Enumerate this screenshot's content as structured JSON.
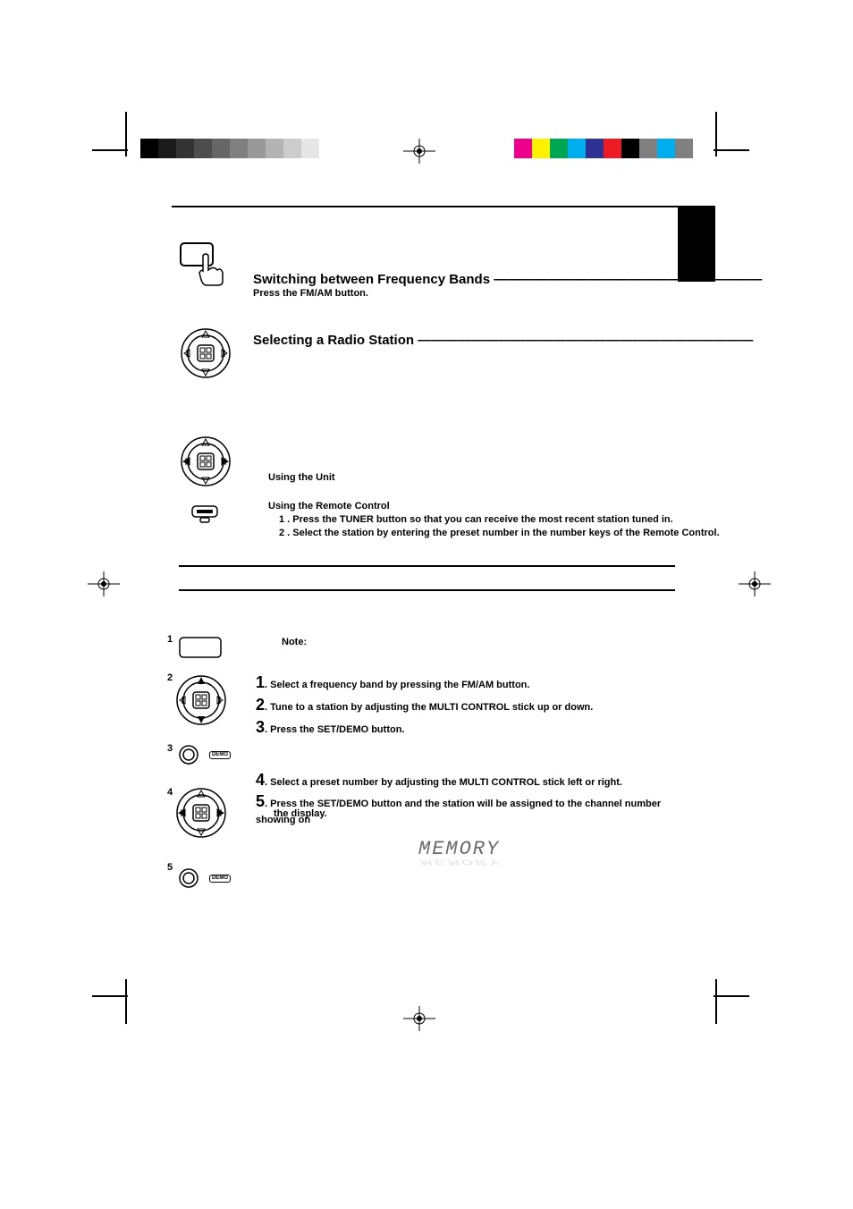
{
  "colors": {
    "gray_swatches": [
      "#000000",
      "#1a1a1a",
      "#333333",
      "#4d4d4d",
      "#666666",
      "#808080",
      "#999999",
      "#b3b3b3",
      "#cccccc",
      "#e6e6e6"
    ],
    "color_swatches": [
      "#ec008c",
      "#fff200",
      "#00a651",
      "#00aeef",
      "#2e3192",
      "#ed1c24",
      "#000000",
      "#808080",
      "#00aeef",
      "#808080"
    ]
  },
  "section1": {
    "heading": "Switching between Frequency Bands",
    "line": " ————————————————————",
    "sub": "Press the FM/AM button."
  },
  "section2": {
    "heading": "Selecting a Radio Station",
    "line": "   —————————————————————————"
  },
  "unit": {
    "heading": "Using  the Unit"
  },
  "remote": {
    "heading": "Using  the Remote Control",
    "step1": "1 .   Press the TUNER button so that you can receive the most recent station tuned in.",
    "step2": "2 .   Select the station by entering the preset number in the number keys of the Remote Control."
  },
  "note": {
    "heading": "Note:"
  },
  "steps": {
    "s1": {
      "num": "1",
      "label": "1",
      "text": ". Select a frequency band by pressing the FM/AM button."
    },
    "s2": {
      "num": "2",
      "label": "2",
      "text": ". Tune to a station by adjusting the MULTI CONTROL stick up or down."
    },
    "s3": {
      "num": "3",
      "label": "3",
      "text": ". Press the SET/DEMO button."
    },
    "s4": {
      "num": "4",
      "label": "4",
      "text": ". Select a preset number by adjusting the MULTI CONTROL stick left or right."
    },
    "s5": {
      "num": "5",
      "label": "5",
      "text": ". Press the SET/DEMO button and the station will be assigned to the channel number showing on",
      "cont": "the display."
    }
  },
  "memory_display": "MEMORY",
  "demo_label": "DEMO"
}
